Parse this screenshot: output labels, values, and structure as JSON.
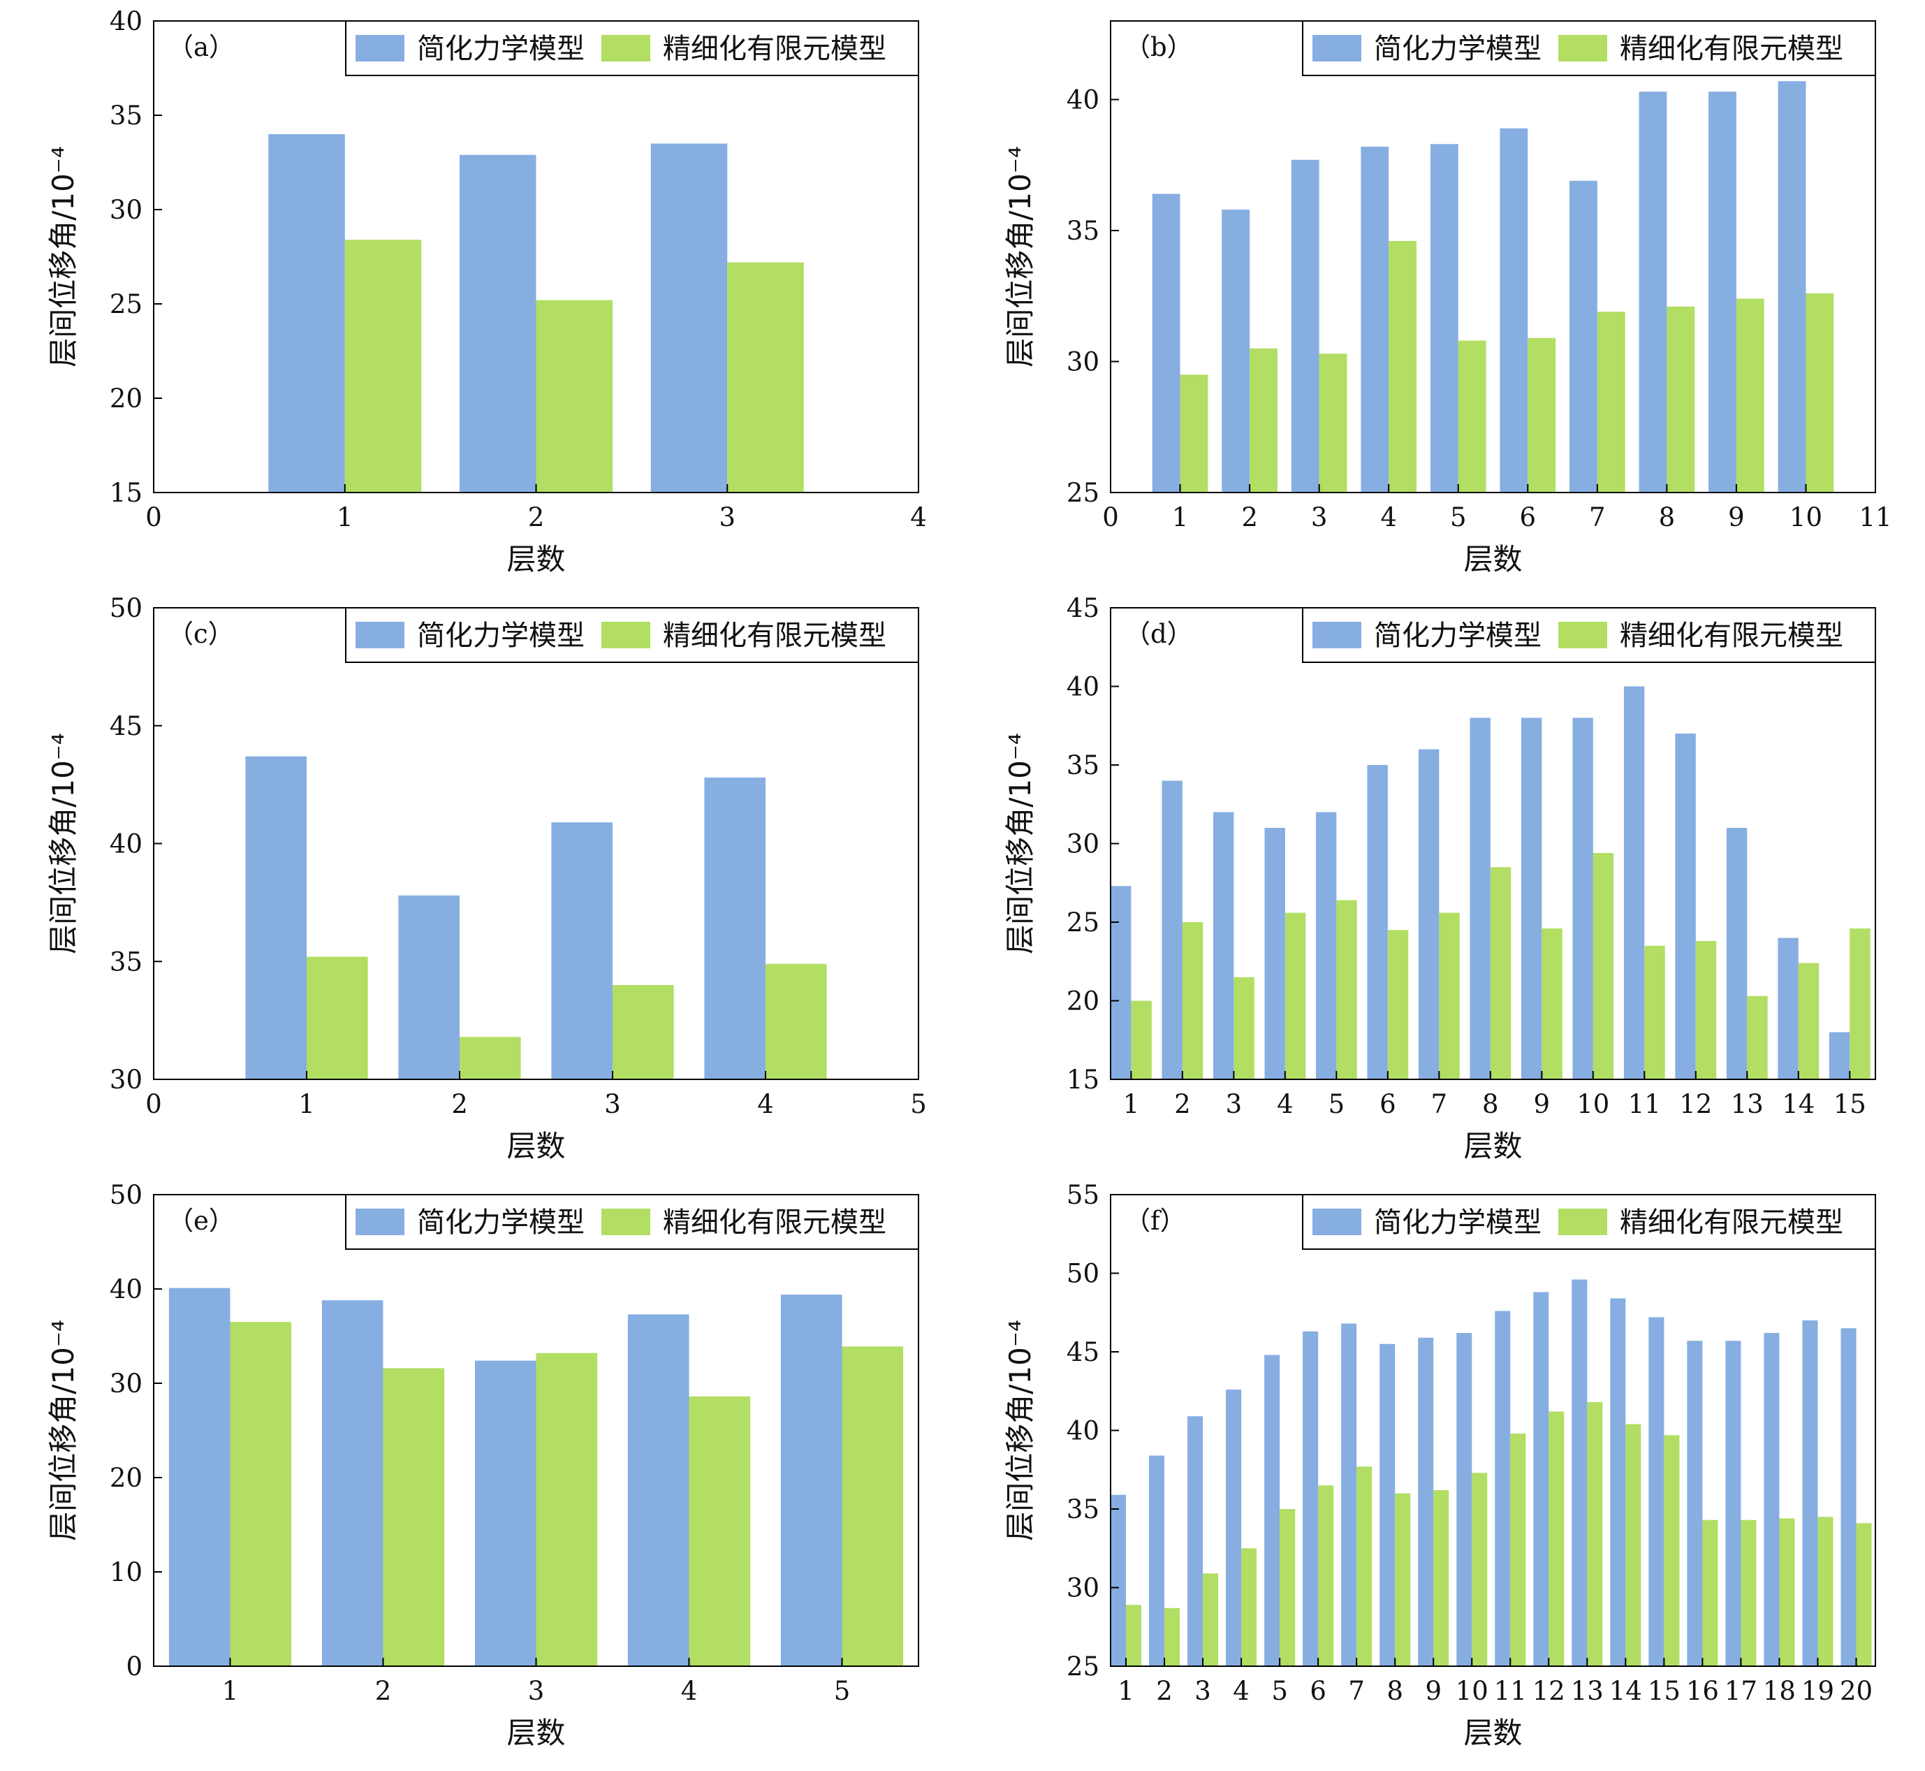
{
  "colors": {
    "series_a": "#86aee1",
    "series_b": "#b1de63"
  },
  "chart_data": [
    {
      "type": "bar",
      "panel_label": "（a）",
      "xlabel": "层数",
      "ylabel": "层间位移角/10⁻⁴",
      "x": [
        1,
        2,
        3
      ],
      "xlim": [
        0,
        4
      ],
      "xticks": [
        0,
        1,
        2,
        3,
        4
      ],
      "ylim": [
        15,
        40
      ],
      "yticks": [
        15,
        20,
        25,
        30,
        35,
        40
      ],
      "grid": false,
      "legend_position": "top-right",
      "series": [
        {
          "name": "简化力学模型",
          "color": "#86aee1",
          "values": [
            34.0,
            32.9,
            33.5
          ]
        },
        {
          "name": "精细化有限元模型",
          "color": "#b1de63",
          "values": [
            28.4,
            25.2,
            27.2
          ]
        }
      ]
    },
    {
      "type": "bar",
      "panel_label": "（b）",
      "xlabel": "层数",
      "ylabel": "层间位移角/10⁻⁴",
      "x": [
        1,
        2,
        3,
        4,
        5,
        6,
        7,
        8,
        9,
        10
      ],
      "xlim": [
        0,
        11
      ],
      "xticks": [
        0,
        1,
        2,
        3,
        4,
        5,
        6,
        7,
        8,
        9,
        10,
        11
      ],
      "ylim": [
        25,
        43
      ],
      "yticks": [
        25,
        30,
        35,
        40
      ],
      "grid": false,
      "legend_position": "top-right",
      "series": [
        {
          "name": "简化力学模型",
          "color": "#86aee1",
          "values": [
            36.4,
            35.8,
            37.7,
            38.2,
            38.3,
            38.9,
            36.9,
            40.3,
            40.3,
            40.7
          ]
        },
        {
          "name": "精细化有限元模型",
          "color": "#b1de63",
          "values": [
            29.5,
            30.5,
            30.3,
            34.6,
            30.8,
            30.9,
            31.9,
            32.1,
            32.4,
            32.6
          ]
        }
      ]
    },
    {
      "type": "bar",
      "panel_label": "（c）",
      "xlabel": "层数",
      "ylabel": "层间位移角/10⁻⁴",
      "x": [
        1,
        2,
        3,
        4
      ],
      "xlim": [
        0,
        5
      ],
      "xticks": [
        0,
        1,
        2,
        3,
        4,
        5
      ],
      "ylim": [
        30,
        50
      ],
      "yticks": [
        30,
        35,
        40,
        45,
        50
      ],
      "grid": false,
      "legend_position": "top-right",
      "series": [
        {
          "name": "简化力学模型",
          "color": "#86aee1",
          "values": [
            43.7,
            37.8,
            40.9,
            42.8
          ]
        },
        {
          "name": "精细化有限元模型",
          "color": "#b1de63",
          "values": [
            35.2,
            31.8,
            34.0,
            34.9
          ]
        }
      ]
    },
    {
      "type": "bar",
      "panel_label": "（d）",
      "xlabel": "层数",
      "ylabel": "层间位移角/10⁻⁴",
      "x": [
        1,
        2,
        3,
        4,
        5,
        6,
        7,
        8,
        9,
        10,
        11,
        12,
        13,
        14,
        15
      ],
      "xlim": [
        0.6,
        15.5
      ],
      "xticks": [
        1,
        2,
        3,
        4,
        5,
        6,
        7,
        8,
        9,
        10,
        11,
        12,
        13,
        14,
        15
      ],
      "ylim": [
        15,
        45
      ],
      "yticks": [
        15,
        20,
        25,
        30,
        35,
        40,
        45
      ],
      "grid": false,
      "legend_position": "top-right",
      "series": [
        {
          "name": "简化力学模型",
          "color": "#86aee1",
          "values": [
            27.3,
            34.0,
            32.0,
            31.0,
            32.0,
            35.0,
            36.0,
            38.0,
            38.0,
            38.0,
            40.0,
            37.0,
            31.0,
            24.0,
            18.0
          ]
        },
        {
          "name": "精细化有限元模型",
          "color": "#b1de63",
          "values": [
            20.0,
            25.0,
            21.5,
            25.6,
            26.4,
            24.5,
            25.6,
            28.5,
            24.6,
            29.4,
            23.5,
            23.8,
            20.3,
            22.4,
            24.6
          ]
        }
      ]
    },
    {
      "type": "bar",
      "panel_label": "（e）",
      "xlabel": "层数",
      "ylabel": "层间位移角/10⁻⁴",
      "x": [
        1,
        2,
        3,
        4,
        5
      ],
      "xlim": [
        0.5,
        5.5
      ],
      "xticks": [
        1,
        2,
        3,
        4,
        5
      ],
      "ylim": [
        0,
        50
      ],
      "yticks": [
        0,
        10,
        20,
        30,
        40,
        50
      ],
      "grid": false,
      "legend_position": "top-right",
      "series": [
        {
          "name": "简化力学模型",
          "color": "#86aee1",
          "values": [
            40.1,
            38.8,
            32.4,
            37.3,
            39.4
          ]
        },
        {
          "name": "精细化有限元模型",
          "color": "#b1de63",
          "values": [
            36.5,
            31.6,
            33.2,
            28.6,
            33.9
          ]
        }
      ]
    },
    {
      "type": "bar",
      "panel_label": "（f）",
      "xlabel": "层数",
      "ylabel": "层间位移角/10⁻⁴",
      "x": [
        1,
        2,
        3,
        4,
        5,
        6,
        7,
        8,
        9,
        10,
        11,
        12,
        13,
        14,
        15,
        16,
        17,
        18,
        19,
        20
      ],
      "xlim": [
        0.6,
        20.5
      ],
      "xticks": [
        1,
        2,
        3,
        4,
        5,
        6,
        7,
        8,
        9,
        10,
        11,
        12,
        13,
        14,
        15,
        16,
        17,
        18,
        19,
        20
      ],
      "ylim": [
        25,
        55
      ],
      "yticks": [
        25,
        30,
        35,
        40,
        45,
        50,
        55
      ],
      "grid": false,
      "legend_position": "top-right",
      "series": [
        {
          "name": "简化力学模型",
          "color": "#86aee1",
          "values": [
            35.9,
            38.4,
            40.9,
            42.6,
            44.8,
            46.3,
            46.8,
            45.5,
            45.9,
            46.2,
            47.6,
            48.8,
            49.6,
            48.4,
            47.2,
            45.7,
            45.7,
            46.2,
            47.0,
            46.5
          ]
        },
        {
          "name": "精细化有限元模型",
          "color": "#b1de63",
          "values": [
            28.9,
            28.7,
            30.9,
            32.5,
            35.0,
            36.5,
            37.7,
            36.0,
            36.2,
            37.3,
            39.8,
            41.2,
            41.8,
            40.4,
            39.7,
            34.3,
            34.3,
            34.4,
            34.5,
            34.1
          ]
        }
      ]
    }
  ]
}
